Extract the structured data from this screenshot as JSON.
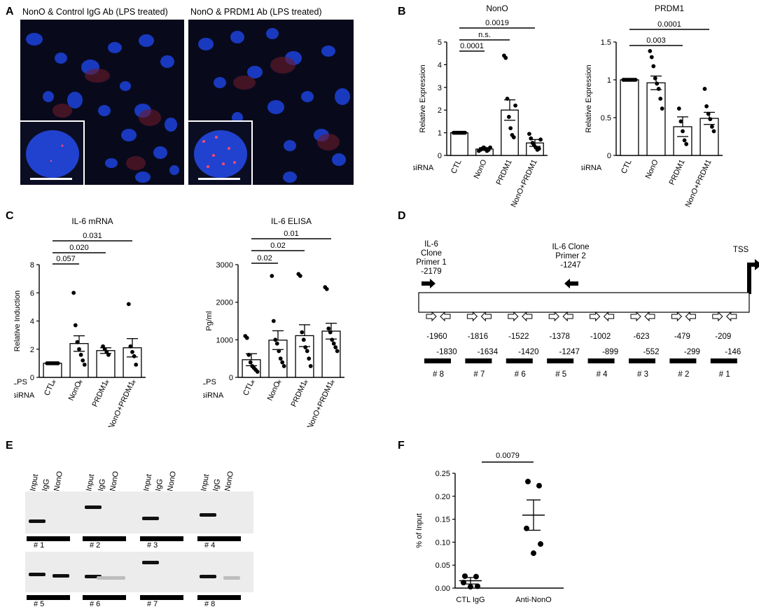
{
  "panel_labels": {
    "A": "A",
    "B": "B",
    "C": "C",
    "D": "D",
    "E": "E",
    "F": "F"
  },
  "panel_a": {
    "left_title": "NonO & Control IgG Ab (LPS treated)",
    "right_title": "NonO & PRDM1 Ab (LPS treated)"
  },
  "common": {
    "siRNA_label": "siRNA",
    "LPS_label": "LPS",
    "plus": "+"
  },
  "chart_data": [
    {
      "id": "B-NonO",
      "type": "bar",
      "title": "NonO",
      "ylabel": "Relative Expression",
      "xlabel_prefix": "siRNA",
      "categories": [
        "CTL",
        "NonO",
        "PRDM1",
        "NonO+PRDM1"
      ],
      "values": [
        1.0,
        0.28,
        2.0,
        0.55
      ],
      "errors": [
        0.02,
        0.06,
        0.45,
        0.15
      ],
      "points": [
        [
          1,
          1,
          1,
          1,
          1,
          1,
          1,
          1
        ],
        [
          0.2,
          0.25,
          0.3,
          0.35,
          0.3,
          0.2,
          0.25,
          0.35
        ],
        [
          4.4,
          4.3,
          2.5,
          1.7,
          1.2,
          0.9,
          0.8,
          2.2
        ],
        [
          0.95,
          0.75,
          0.55,
          0.45,
          0.35,
          0.25,
          0.3,
          0.7
        ]
      ],
      "ylim": [
        0,
        5
      ],
      "yticks": [
        0,
        1,
        2,
        3,
        4,
        5
      ],
      "significance": [
        {
          "from": 0,
          "to": 1,
          "label": "0.0001"
        },
        {
          "from": 0,
          "to": 2,
          "label": "n.s."
        },
        {
          "from": 0,
          "to": 3,
          "label": "0.0019"
        }
      ]
    },
    {
      "id": "B-PRDM1",
      "type": "bar",
      "title": "PRDM1",
      "ylabel": "Relative Expression",
      "xlabel_prefix": "siRNA",
      "categories": [
        "CTL",
        "NonO",
        "PRDM1",
        "NonO+PRDM1"
      ],
      "values": [
        1.0,
        0.96,
        0.38,
        0.49
      ],
      "errors": [
        0.01,
        0.09,
        0.13,
        0.08
      ],
      "points": [
        [
          1,
          1,
          1,
          1,
          1,
          1,
          1,
          1
        ],
        [
          1.38,
          1.3,
          1.18,
          1.02,
          0.95,
          0.88,
          0.75,
          0.62
        ],
        [
          0.62,
          0.45,
          0.32,
          0.2,
          0.15
        ],
        [
          0.88,
          0.65,
          0.55,
          0.48,
          0.38,
          0.32
        ]
      ],
      "ylim": [
        0,
        1.5
      ],
      "yticks": [
        0.0,
        0.5,
        1.0,
        1.5
      ],
      "significance": [
        {
          "from": 0,
          "to": 2,
          "label": "0.003"
        },
        {
          "from": 0,
          "to": 3,
          "label": "0.0001"
        }
      ]
    },
    {
      "id": "C-IL6mRNA",
      "type": "bar",
      "title": "IL-6 mRNA",
      "ylabel": "Relative Induction",
      "xlabel_prefix": "siRNA",
      "categories": [
        "CTL",
        "NonO",
        "PRDM1",
        "NonO+PRDM1"
      ],
      "values": [
        1.0,
        2.4,
        1.9,
        2.1
      ],
      "errors": [
        0.02,
        0.55,
        0.2,
        0.65
      ],
      "points": [
        [
          1,
          1,
          1,
          1,
          1,
          1,
          1
        ],
        [
          6.0,
          3.7,
          2.5,
          2.0,
          1.6,
          1.2,
          0.9
        ],
        [
          2.2,
          2.0,
          1.8,
          1.6
        ],
        [
          5.2,
          2.2,
          1.8,
          1.5,
          0.9
        ]
      ],
      "ylim": [
        0,
        8
      ],
      "yticks": [
        0,
        2,
        4,
        6,
        8
      ],
      "significance": [
        {
          "from": 0,
          "to": 1,
          "label": "0.057"
        },
        {
          "from": 0,
          "to": 2,
          "label": "0.020"
        },
        {
          "from": 0,
          "to": 3,
          "label": "0.031"
        }
      ]
    },
    {
      "id": "C-IL6ELISA",
      "type": "bar",
      "title": "IL-6 ELISA",
      "ylabel": "Pg/ml",
      "xlabel_prefix": "siRNA",
      "categories": [
        "CTL",
        "NonO",
        "PRDM1",
        "NonO+PRDM1"
      ],
      "values": [
        470,
        990,
        1110,
        1230
      ],
      "errors": [
        160,
        250,
        290,
        210
      ],
      "points": [
        [
          1100,
          1050,
          600,
          400,
          300,
          250,
          200,
          150
        ],
        [
          2700,
          1500,
          1000,
          900,
          700,
          500,
          400,
          300
        ],
        [
          2750,
          2700,
          1200,
          1000,
          800,
          700,
          500,
          300
        ],
        [
          2400,
          2350,
          1300,
          1200,
          1000,
          900,
          800,
          700
        ]
      ],
      "ylim": [
        0,
        3000
      ],
      "yticks": [
        0,
        1000,
        2000,
        3000
      ],
      "significance": [
        {
          "from": 0,
          "to": 1,
          "label": "0.02"
        },
        {
          "from": 0,
          "to": 2,
          "label": "0.02"
        },
        {
          "from": 0,
          "to": 3,
          "label": "0.01"
        }
      ]
    },
    {
      "id": "F-ChIP",
      "type": "scatter",
      "ylabel": "% of Input",
      "categories": [
        "CTL IgG",
        "Anti-NonO"
      ],
      "values": [
        0.016,
        0.159
      ],
      "errors": [
        0.007,
        0.033
      ],
      "points": [
        [
          0.026,
          0.025,
          0.012,
          0.004,
          0.003
        ],
        [
          0.232,
          0.223,
          0.13,
          0.096,
          0.076
        ]
      ],
      "ylim": [
        0,
        0.25
      ],
      "yticks": [
        "0.00",
        "0.05",
        "0.10",
        "0.15",
        "0.20",
        "0.25"
      ],
      "significance": [
        {
          "from": 0,
          "to": 1,
          "label": "0.0079"
        }
      ]
    }
  ],
  "panel_d": {
    "primer1": [
      "IL-6",
      "Clone",
      "Primer 1",
      "-2179"
    ],
    "primer2": [
      "IL-6 Clone",
      "Primer 2",
      "-1247"
    ],
    "tss": "TSS",
    "regions": [
      {
        "start": "-1960",
        "end": "-1830",
        "label": "# 8"
      },
      {
        "start": "-1816",
        "end": "-1634",
        "label": "# 7"
      },
      {
        "start": "-1522",
        "end": "-1420",
        "label": "# 6"
      },
      {
        "start": "-1378",
        "end": "-1247",
        "label": "# 5"
      },
      {
        "start": "-1002",
        "end": "-899",
        "label": "# 4"
      },
      {
        "start": "-623",
        "end": "-552",
        "label": "# 3"
      },
      {
        "start": "-479",
        "end": "-299",
        "label": "# 2"
      },
      {
        "start": "-209",
        "end": "-146",
        "label": "# 1"
      }
    ]
  },
  "panel_e": {
    "lane_labels": [
      "Input",
      "IgG",
      "NonO"
    ],
    "top_row": [
      "# 1",
      "# 2",
      "# 3",
      "# 4"
    ],
    "bottom_row": [
      "# 5",
      "# 6",
      "# 7",
      "# 8"
    ]
  }
}
